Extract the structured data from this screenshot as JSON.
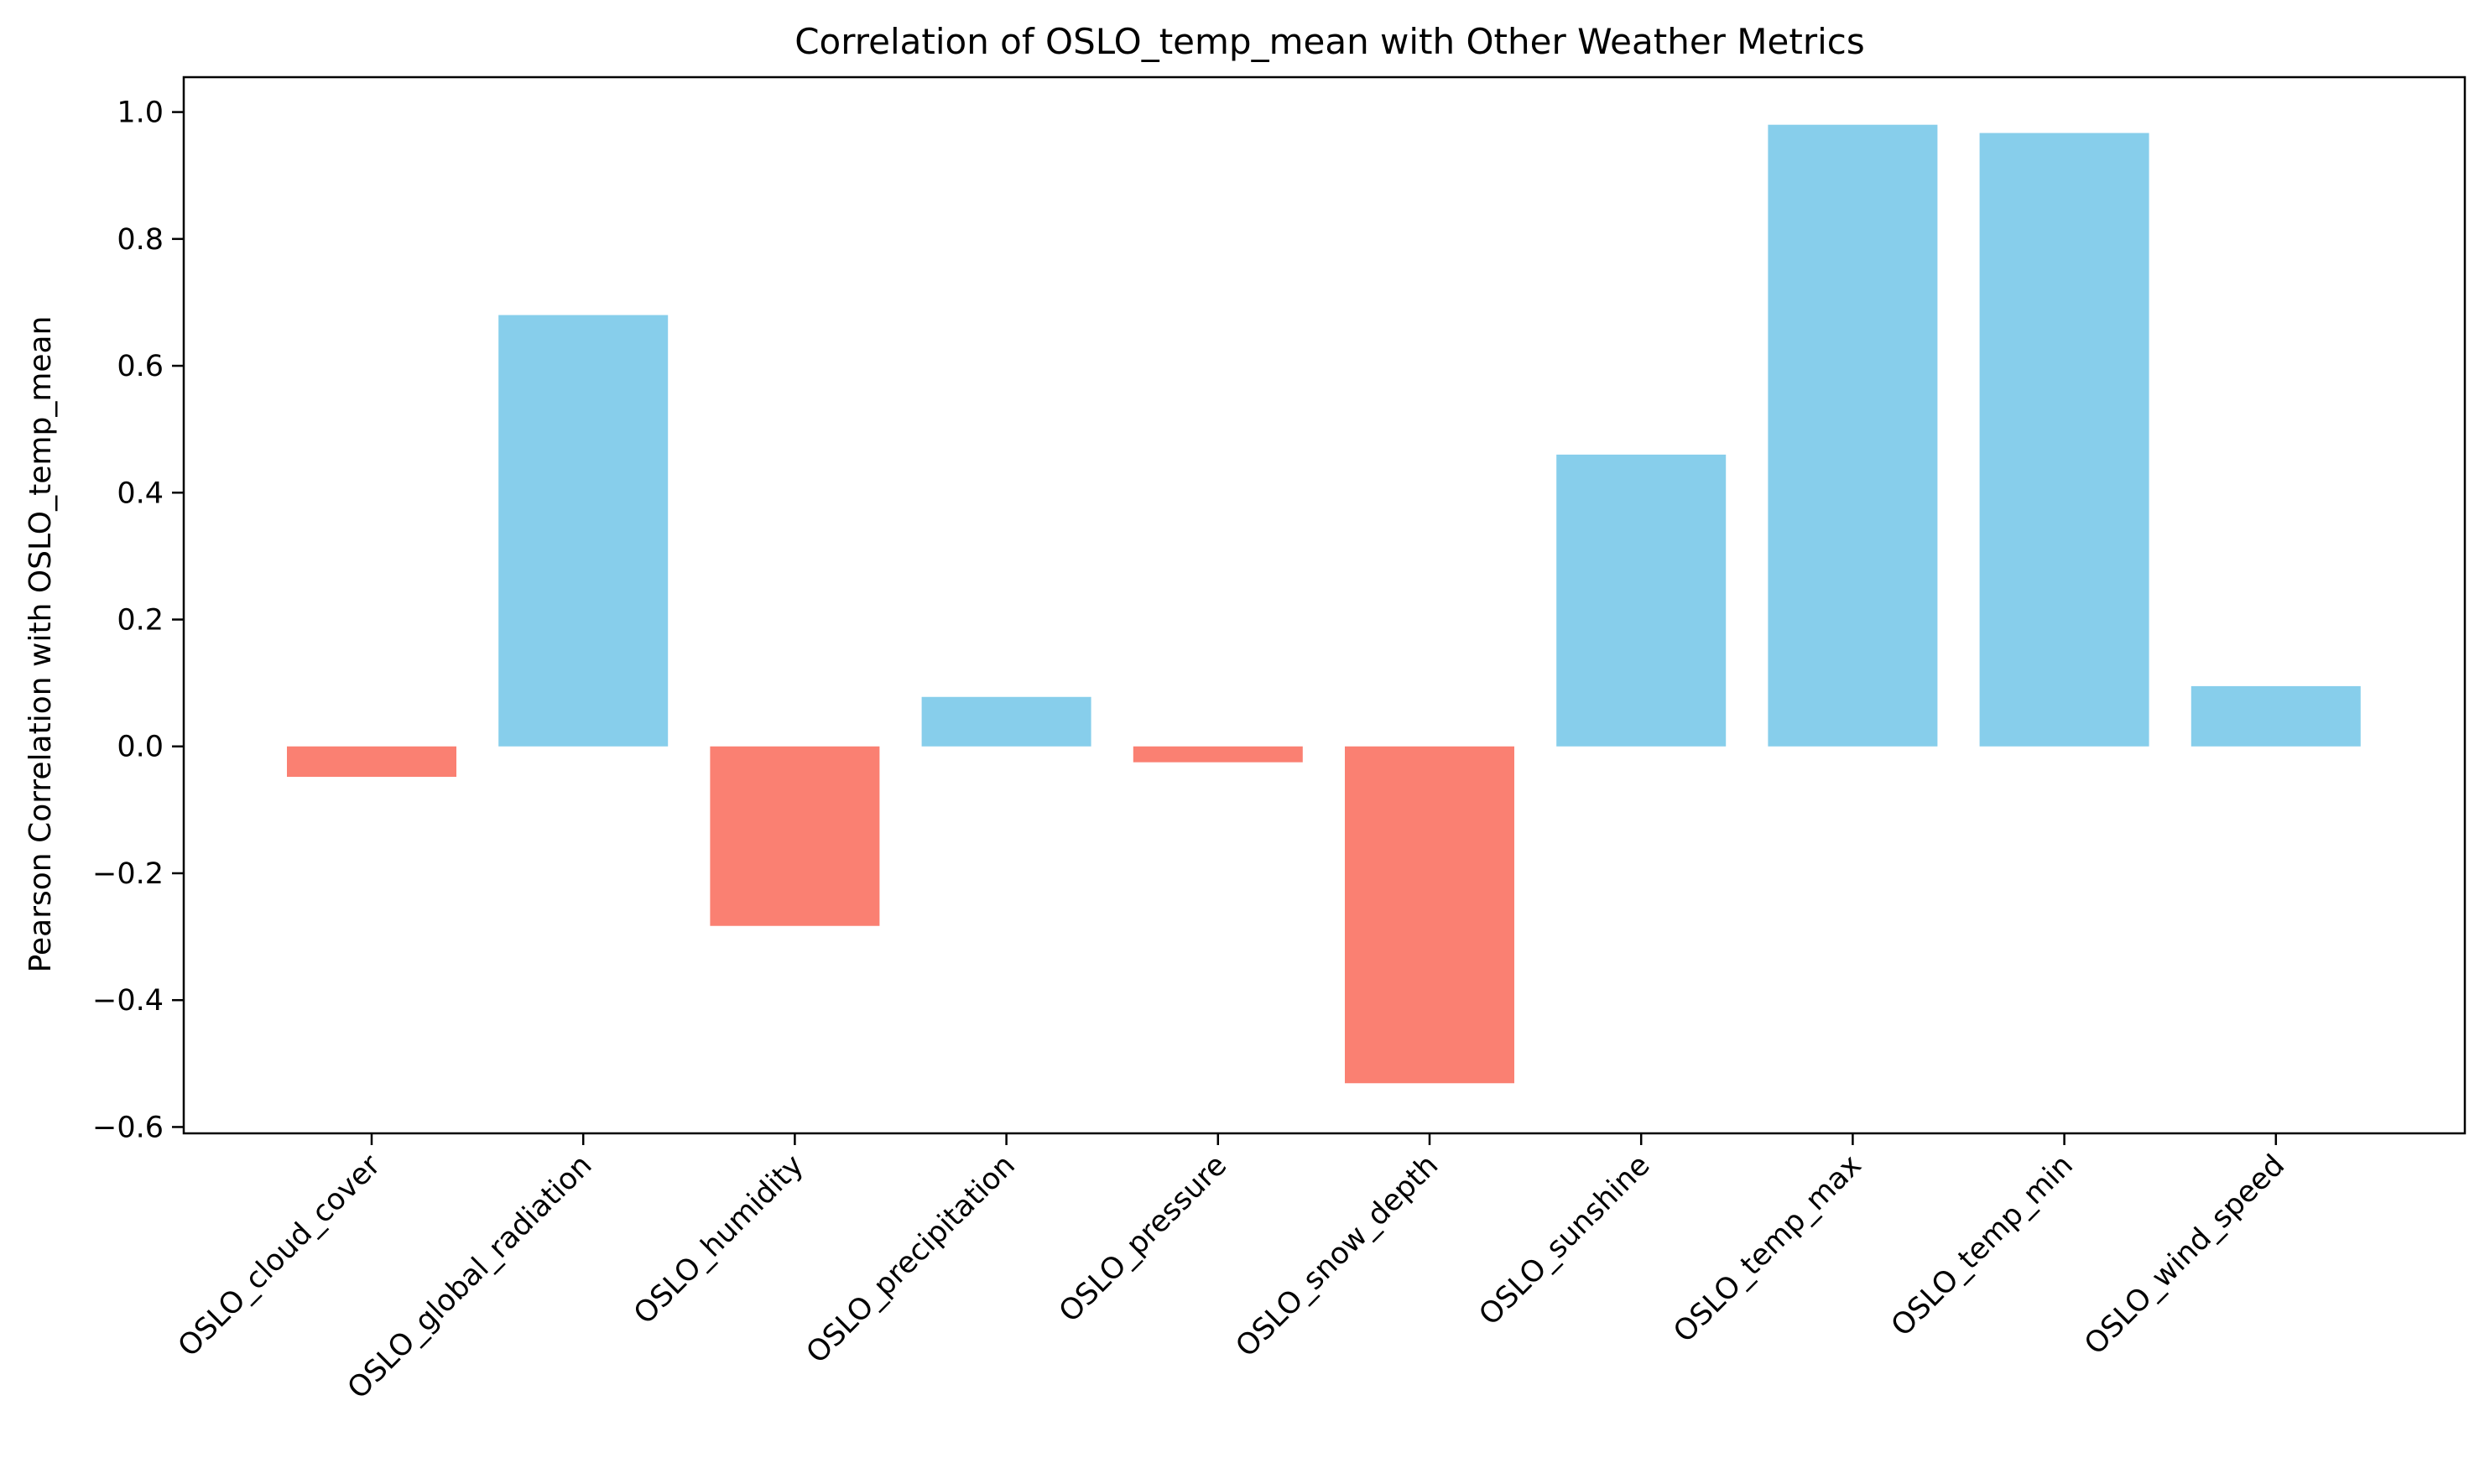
{
  "chart_data": {
    "type": "bar",
    "title": "Correlation of OSLO_temp_mean with Other Weather Metrics",
    "xlabel": "",
    "ylabel": "Pearson Correlation with OSLO_temp_mean",
    "categories": [
      "OSLO_cloud_cover",
      "OSLO_global_radiation",
      "OSLO_humidity",
      "OSLO_precipitation",
      "OSLO_pressure",
      "OSLO_snow_depth",
      "OSLO_sunshine",
      "OSLO_temp_max",
      "OSLO_temp_min",
      "OSLO_wind_speed"
    ],
    "values": [
      -0.048,
      0.68,
      -0.283,
      0.078,
      -0.025,
      -0.531,
      0.46,
      0.98,
      0.967,
      0.095
    ],
    "ylim": [
      -0.61,
      1.055
    ],
    "yticks": [
      -0.6,
      -0.4,
      -0.2,
      0.0,
      0.2,
      0.4,
      0.6,
      0.8,
      1.0
    ],
    "ytick_labels": [
      "−0.6",
      "−0.4",
      "−0.2",
      "0.0",
      "0.2",
      "0.4",
      "0.6",
      "0.8",
      "1.0"
    ],
    "grid": false,
    "colors": {
      "positive": "#87ceeb",
      "negative": "#fa8072"
    }
  }
}
